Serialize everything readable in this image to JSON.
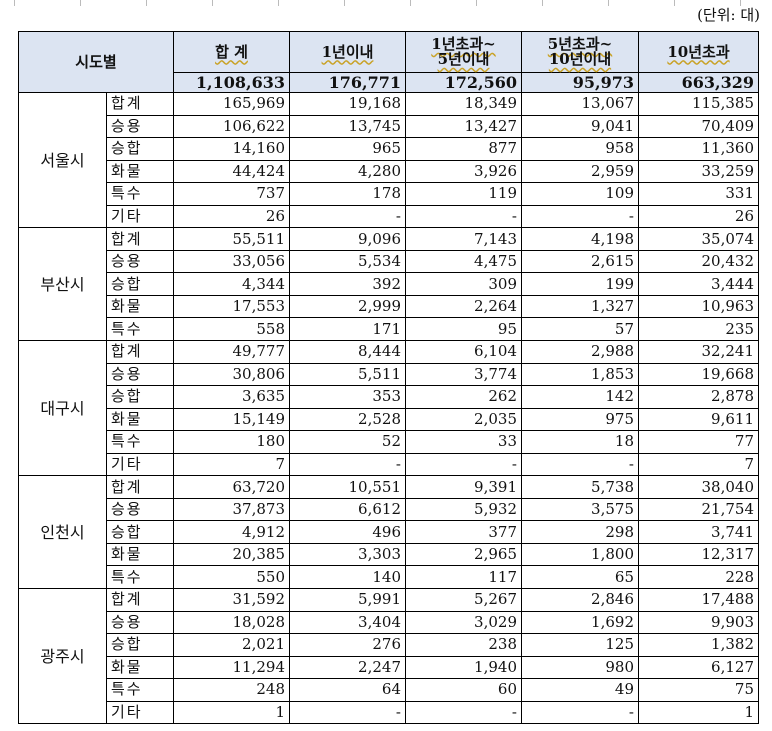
{
  "unit": "(단위: 대)",
  "headers": {
    "region": "시도별",
    "total": "합 계",
    "c1": "1년이내",
    "c2a": "1년초과~",
    "c2b": "5년이내",
    "c3a": "5년초과~",
    "c3b": "10년이내",
    "c4": "10년초과"
  },
  "totals": [
    "1,108,633",
    "176,771",
    "172,560",
    "95,973",
    "663,329"
  ],
  "cities": [
    {
      "name": "서울시",
      "rows": [
        {
          "type": "합계",
          "values": [
            "165,969",
            "19,168",
            "18,349",
            "13,067",
            "115,385"
          ]
        },
        {
          "type": "승용",
          "values": [
            "106,622",
            "13,745",
            "13,427",
            "9,041",
            "70,409"
          ]
        },
        {
          "type": "승합",
          "values": [
            "14,160",
            "965",
            "877",
            "958",
            "11,360"
          ]
        },
        {
          "type": "화물",
          "values": [
            "44,424",
            "4,280",
            "3,926",
            "2,959",
            "33,259"
          ]
        },
        {
          "type": "특수",
          "values": [
            "737",
            "178",
            "119",
            "109",
            "331"
          ]
        },
        {
          "type": "기타",
          "values": [
            "26",
            "-",
            "-",
            "-",
            "26"
          ]
        }
      ]
    },
    {
      "name": "부산시",
      "rows": [
        {
          "type": "합계",
          "values": [
            "55,511",
            "9,096",
            "7,143",
            "4,198",
            "35,074"
          ]
        },
        {
          "type": "승용",
          "values": [
            "33,056",
            "5,534",
            "4,475",
            "2,615",
            "20,432"
          ]
        },
        {
          "type": "승합",
          "values": [
            "4,344",
            "392",
            "309",
            "199",
            "3,444"
          ]
        },
        {
          "type": "화물",
          "values": [
            "17,553",
            "2,999",
            "2,264",
            "1,327",
            "10,963"
          ]
        },
        {
          "type": "특수",
          "values": [
            "558",
            "171",
            "95",
            "57",
            "235"
          ]
        }
      ]
    },
    {
      "name": "대구시",
      "rows": [
        {
          "type": "합계",
          "values": [
            "49,777",
            "8,444",
            "6,104",
            "2,988",
            "32,241"
          ]
        },
        {
          "type": "승용",
          "values": [
            "30,806",
            "5,511",
            "3,774",
            "1,853",
            "19,668"
          ]
        },
        {
          "type": "승합",
          "values": [
            "3,635",
            "353",
            "262",
            "142",
            "2,878"
          ]
        },
        {
          "type": "화물",
          "values": [
            "15,149",
            "2,528",
            "2,035",
            "975",
            "9,611"
          ]
        },
        {
          "type": "특수",
          "values": [
            "180",
            "52",
            "33",
            "18",
            "77"
          ]
        },
        {
          "type": "기타",
          "values": [
            "7",
            "-",
            "-",
            "-",
            "7"
          ]
        }
      ]
    },
    {
      "name": "인천시",
      "rows": [
        {
          "type": "합계",
          "values": [
            "63,720",
            "10,551",
            "9,391",
            "5,738",
            "38,040"
          ]
        },
        {
          "type": "승용",
          "values": [
            "37,873",
            "6,612",
            "5,932",
            "3,575",
            "21,754"
          ]
        },
        {
          "type": "승합",
          "values": [
            "4,912",
            "496",
            "377",
            "298",
            "3,741"
          ]
        },
        {
          "type": "화물",
          "values": [
            "20,385",
            "3,303",
            "2,965",
            "1,800",
            "12,317"
          ]
        },
        {
          "type": "특수",
          "values": [
            "550",
            "140",
            "117",
            "65",
            "228"
          ]
        }
      ]
    },
    {
      "name": "광주시",
      "rows": [
        {
          "type": "합계",
          "values": [
            "31,592",
            "5,991",
            "5,267",
            "2,846",
            "17,488"
          ]
        },
        {
          "type": "승용",
          "values": [
            "18,028",
            "3,404",
            "3,029",
            "1,692",
            "9,903"
          ]
        },
        {
          "type": "승합",
          "values": [
            "2,021",
            "276",
            "238",
            "125",
            "1,382"
          ]
        },
        {
          "type": "화물",
          "values": [
            "11,294",
            "2,247",
            "1,940",
            "980",
            "6,127"
          ]
        },
        {
          "type": "특수",
          "values": [
            "248",
            "64",
            "60",
            "49",
            "75"
          ]
        },
        {
          "type": "기타",
          "values": [
            "1",
            "-",
            "-",
            "-",
            "1"
          ]
        }
      ]
    }
  ]
}
